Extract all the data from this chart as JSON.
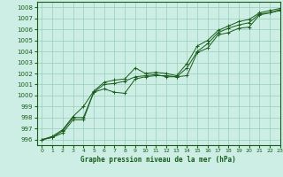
{
  "title": "Graphe pression niveau de la mer (hPa)",
  "xlim": [
    -0.5,
    23
  ],
  "ylim": [
    995.5,
    1008.5
  ],
  "yticks": [
    996,
    997,
    998,
    999,
    1000,
    1001,
    1002,
    1003,
    1004,
    1005,
    1006,
    1007,
    1008
  ],
  "xticks": [
    0,
    1,
    2,
    3,
    4,
    5,
    6,
    7,
    8,
    9,
    10,
    11,
    12,
    13,
    14,
    15,
    16,
    17,
    18,
    19,
    20,
    21,
    22,
    23
  ],
  "background_color": "#cceee4",
  "grid_color": "#99ccbb",
  "line_color": "#1a5c1a",
  "series1": [
    996.0,
    996.2,
    996.6,
    997.8,
    997.8,
    1000.3,
    1000.6,
    1000.3,
    1000.2,
    1001.5,
    1001.7,
    1001.8,
    1001.8,
    1001.7,
    1001.8,
    1003.9,
    1004.3,
    1005.5,
    1005.7,
    1006.1,
    1006.2,
    1007.3,
    1007.5,
    1007.7
  ],
  "series2": [
    996.0,
    996.2,
    996.8,
    998.0,
    998.0,
    1000.3,
    1001.0,
    1001.1,
    1001.3,
    1001.7,
    1001.8,
    1001.9,
    1001.7,
    1001.7,
    1002.5,
    1004.0,
    1004.7,
    1005.7,
    1006.1,
    1006.4,
    1006.6,
    1007.4,
    1007.5,
    1007.8
  ],
  "series3": [
    996.0,
    996.3,
    996.9,
    998.1,
    999.0,
    1000.4,
    1001.2,
    1001.4,
    1001.5,
    1002.5,
    1002.0,
    1002.1,
    1002.0,
    1001.8,
    1002.9,
    1004.5,
    1005.0,
    1005.9,
    1006.3,
    1006.7,
    1006.9,
    1007.5,
    1007.7,
    1007.9
  ]
}
